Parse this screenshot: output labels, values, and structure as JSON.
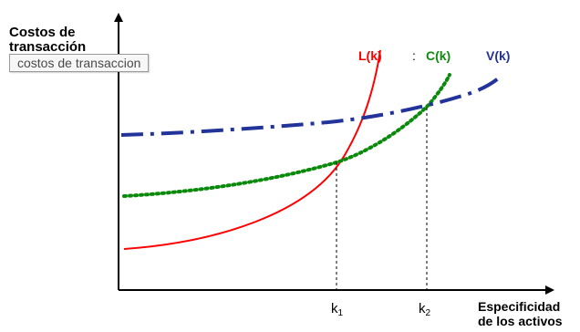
{
  "diagram": {
    "y_axis_label_line1": "Costos de",
    "y_axis_label_line2": "transacción",
    "x_axis_label_line1": "Especificidad",
    "x_axis_label_line2": "de los activos",
    "tooltip": "costos de transaccion",
    "curves": {
      "L": {
        "label": "L(k)",
        "color": "#ff0000"
      },
      "C": {
        "label": "C(k)",
        "color": "#118a11"
      },
      "V": {
        "label": "V(k)",
        "color": "#223399"
      }
    },
    "separator": ":",
    "k1": {
      "base": "k",
      "sub": "1"
    },
    "k2": {
      "base": "k",
      "sub": "2"
    }
  }
}
